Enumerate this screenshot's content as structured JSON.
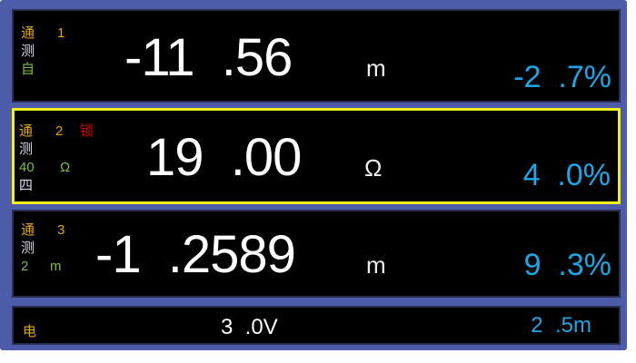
{
  "channels": [
    {
      "ch_label": "通",
      "ch_num": "1",
      "mode": "测",
      "range": "自",
      "range_unit": "",
      "lock": "",
      "extra": "",
      "value": "-11  .56",
      "unit": "m",
      "percent": "-2  .7%",
      "selected": false
    },
    {
      "ch_label": "通",
      "ch_num": "2",
      "mode": "测",
      "range": "40",
      "range_unit": "Ω",
      "lock": "锁",
      "extra": "四",
      "value": "19  .00",
      "unit": "Ω",
      "percent": "4  .0%",
      "selected": true
    },
    {
      "ch_label": "通",
      "ch_num": "3",
      "mode": "测",
      "range": "2",
      "range_unit": "m",
      "lock": "",
      "extra": "",
      "value": "-1  .2589",
      "unit": "m",
      "percent": "9  .3%",
      "selected": false
    }
  ],
  "status": {
    "label": "电",
    "voltage": "3  .0V",
    "current": "2  .5m"
  },
  "colors": {
    "frame": "#4d5ca8",
    "selected_border": "#f2ee1a",
    "percent": "#1aa8e8",
    "lock": "#e00000"
  }
}
